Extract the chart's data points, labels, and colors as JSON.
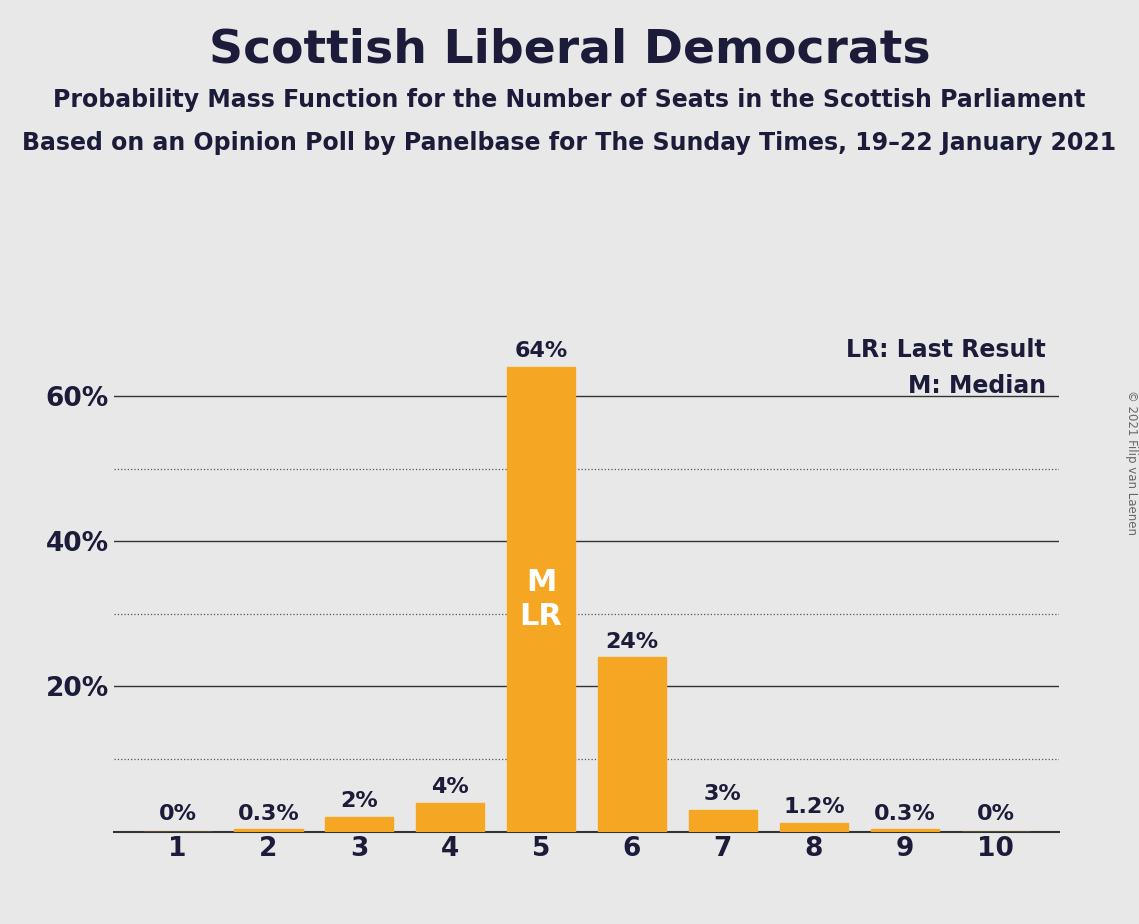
{
  "title": "Scottish Liberal Democrats",
  "subtitle1": "Probability Mass Function for the Number of Seats in the Scottish Parliament",
  "subtitle2": "Based on an Opinion Poll by Panelbase for The Sunday Times, 19–22 January 2021",
  "copyright": "© 2021 Filip van Laenen",
  "categories": [
    1,
    2,
    3,
    4,
    5,
    6,
    7,
    8,
    9,
    10
  ],
  "values": [
    0.0,
    0.3,
    2.0,
    4.0,
    64.0,
    24.0,
    3.0,
    1.2,
    0.3,
    0.0
  ],
  "bar_color": "#F5A623",
  "background_color": "#E8E8E8",
  "text_color": "#1C1C3A",
  "bar_labels": [
    "0%",
    "0.3%",
    "2%",
    "4%",
    "64%",
    "24%",
    "3%",
    "1.2%",
    "0.3%",
    "0%"
  ],
  "median_bar": 5,
  "last_result_bar": 5,
  "ylim_max": 70,
  "dotted_grid": [
    10,
    30,
    50
  ],
  "solid_grid": [
    20,
    40,
    60
  ],
  "ytick_positions": [
    20,
    40,
    60
  ],
  "ytick_labels": [
    "20%",
    "40%",
    "60%"
  ],
  "legend_lr": "LR: Last Result",
  "legend_m": "M: Median",
  "title_fontsize": 34,
  "subtitle_fontsize": 17,
  "bar_label_fontsize": 16,
  "ml_label_fontsize": 22,
  "tick_fontsize": 19,
  "legend_fontsize": 17
}
